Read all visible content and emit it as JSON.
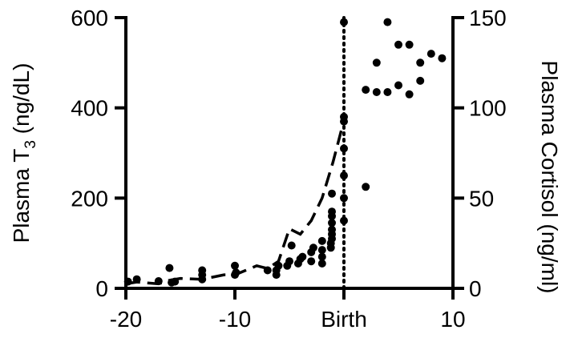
{
  "chart_data": {
    "type": "scatter",
    "x_axis": {
      "range": [
        -20,
        10
      ],
      "ticks": [
        {
          "value": -20,
          "label": "-20"
        },
        {
          "value": -10,
          "label": "-10"
        },
        {
          "value": 0,
          "label": "Birth"
        },
        {
          "value": 10,
          "label": "10"
        }
      ]
    },
    "y_left": {
      "label_main": "Plasma T",
      "label_sub": "3",
      "label_unit": " (ng/dL)",
      "range": [
        0,
        600
      ],
      "ticks": [
        {
          "value": 0,
          "label": "0"
        },
        {
          "value": 200,
          "label": "200"
        },
        {
          "value": 400,
          "label": "400"
        },
        {
          "value": 600,
          "label": "600"
        }
      ]
    },
    "y_right": {
      "label": "Plasma Cortisol (ng/ml)",
      "range": [
        0,
        150
      ],
      "ticks": [
        {
          "value": 0,
          "label": "0"
        },
        {
          "value": 50,
          "label": "50"
        },
        {
          "value": 100,
          "label": "100"
        },
        {
          "value": 150,
          "label": "150"
        }
      ]
    },
    "birth_line_x": 0,
    "series": [
      {
        "axis": "left",
        "style": "points",
        "color": "#000000",
        "points": [
          [
            -19.8,
            15
          ],
          [
            -19,
            20
          ],
          [
            -17,
            16
          ],
          [
            -16,
            45
          ],
          [
            -15.8,
            13
          ],
          [
            -15.5,
            15
          ],
          [
            -13,
            20
          ],
          [
            -13,
            30
          ],
          [
            -13,
            40
          ],
          [
            -10,
            30
          ],
          [
            -10,
            50
          ],
          [
            -9.9,
            35
          ],
          [
            -7,
            40
          ],
          [
            -6.2,
            30
          ],
          [
            -6.2,
            40
          ],
          [
            -6,
            50
          ],
          [
            -5.2,
            50
          ],
          [
            -5,
            60
          ],
          [
            -4.8,
            95
          ],
          [
            -4.2,
            55
          ],
          [
            -4,
            65
          ],
          [
            -3.8,
            70
          ],
          [
            -3,
            60
          ],
          [
            -3,
            80
          ],
          [
            -2.8,
            90
          ],
          [
            -2,
            55
          ],
          [
            -2,
            70
          ],
          [
            -2,
            85
          ],
          [
            -2,
            105
          ],
          [
            -1.2,
            90
          ],
          [
            -1.2,
            100
          ],
          [
            -1.1,
            110
          ],
          [
            -1.1,
            120
          ],
          [
            -1.1,
            130
          ],
          [
            -1.1,
            145
          ],
          [
            -1.1,
            160
          ],
          [
            -1.1,
            170
          ],
          [
            -1.1,
            210
          ],
          [
            0,
            150
          ],
          [
            0,
            200
          ],
          [
            0,
            250
          ],
          [
            0,
            310
          ],
          [
            0,
            370
          ],
          [
            0,
            380
          ],
          [
            0,
            590
          ],
          [
            2,
            225
          ],
          [
            2,
            440
          ],
          [
            3,
            500
          ],
          [
            3,
            435
          ],
          [
            4,
            590
          ],
          [
            4,
            435
          ],
          [
            5,
            450
          ],
          [
            5,
            540
          ],
          [
            6,
            540
          ],
          [
            6,
            430
          ],
          [
            7,
            460
          ],
          [
            7,
            500
          ],
          [
            8,
            520
          ],
          [
            9,
            510
          ]
        ]
      },
      {
        "axis": "right",
        "style": "dashed",
        "color": "#000000",
        "points": [
          [
            -20,
            2.5
          ],
          [
            -19,
            3.5
          ],
          [
            -17,
            2.5
          ],
          [
            -16,
            4.5
          ],
          [
            -15,
            5.5
          ],
          [
            -13,
            5
          ],
          [
            -11,
            7.5
          ],
          [
            -10,
            7.5
          ],
          [
            -9,
            10
          ],
          [
            -8,
            12.5
          ],
          [
            -7,
            11
          ],
          [
            -6,
            15
          ],
          [
            -5,
            33
          ],
          [
            -4,
            30
          ],
          [
            -3,
            37.5
          ],
          [
            -2,
            50
          ],
          [
            -1,
            70
          ],
          [
            0,
            93
          ]
        ]
      }
    ]
  }
}
